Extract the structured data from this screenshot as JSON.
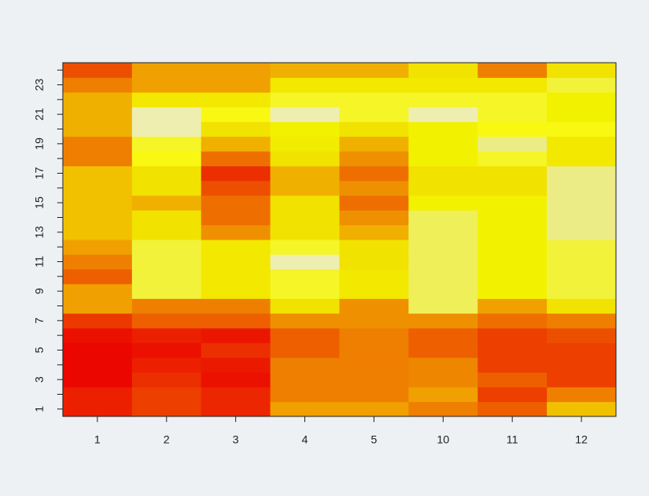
{
  "chart_data": {
    "type": "heatmap",
    "categories": [
      "1",
      "2",
      "3",
      "4",
      "5",
      "10",
      "11",
      "12"
    ],
    "ylim": [
      0.5,
      24.5
    ],
    "yticks": [
      1,
      3,
      5,
      7,
      9,
      11,
      13,
      15,
      17,
      19,
      21,
      23
    ],
    "yminorticks": [
      2,
      4,
      6,
      8,
      10,
      12,
      14,
      16,
      18,
      20,
      22,
      24
    ],
    "zlim": [
      0,
      1
    ],
    "colormap": "heat",
    "z": [
      [
        0.1,
        0.1,
        0.02,
        0.02,
        0.02,
        0.05,
        0.18,
        0.5,
        0.5,
        0.3,
        0.4,
        0.5,
        0.6,
        0.6,
        0.6,
        0.6,
        0.6,
        0.4,
        0.4,
        0.55,
        0.55,
        0.55,
        0.4,
        0.25
      ],
      [
        0.2,
        0.2,
        0.15,
        0.1,
        0.05,
        0.1,
        0.3,
        0.4,
        0.82,
        0.82,
        0.82,
        0.82,
        0.7,
        0.7,
        0.55,
        0.7,
        0.7,
        0.78,
        0.8,
        0.95,
        0.95,
        0.72,
        0.5,
        0.5
      ],
      [
        0.12,
        0.12,
        0.05,
        0.08,
        0.15,
        0.07,
        0.3,
        0.4,
        0.72,
        0.72,
        0.72,
        0.72,
        0.45,
        0.35,
        0.35,
        0.25,
        0.15,
        0.35,
        0.55,
        0.7,
        0.78,
        0.72,
        0.5,
        0.5
      ],
      [
        0.5,
        0.4,
        0.4,
        0.4,
        0.3,
        0.3,
        0.45,
        0.7,
        0.8,
        0.8,
        0.95,
        0.8,
        0.7,
        0.7,
        0.7,
        0.55,
        0.55,
        0.7,
        0.73,
        0.75,
        0.95,
        0.8,
        0.72,
        0.55
      ],
      [
        0.5,
        0.4,
        0.4,
        0.4,
        0.4,
        0.4,
        0.45,
        0.45,
        0.72,
        0.72,
        0.7,
        0.7,
        0.55,
        0.45,
        0.35,
        0.45,
        0.35,
        0.45,
        0.55,
        0.7,
        0.8,
        0.8,
        0.72,
        0.55
      ],
      [
        0.4,
        0.5,
        0.42,
        0.42,
        0.3,
        0.3,
        0.45,
        0.85,
        0.85,
        0.85,
        0.85,
        0.85,
        0.85,
        0.85,
        0.75,
        0.7,
        0.7,
        0.75,
        0.75,
        0.75,
        0.95,
        0.8,
        0.72,
        0.7
      ],
      [
        0.3,
        0.2,
        0.3,
        0.2,
        0.2,
        0.2,
        0.35,
        0.5,
        0.75,
        0.75,
        0.75,
        0.75,
        0.75,
        0.75,
        0.75,
        0.7,
        0.7,
        0.8,
        0.9,
        0.78,
        0.8,
        0.8,
        0.72,
        0.4
      ],
      [
        0.6,
        0.4,
        0.2,
        0.2,
        0.2,
        0.25,
        0.4,
        0.7,
        0.82,
        0.82,
        0.82,
        0.82,
        0.9,
        0.9,
        0.9,
        0.9,
        0.9,
        0.72,
        0.72,
        0.78,
        0.75,
        0.75,
        0.82,
        0.7
      ]
    ]
  }
}
